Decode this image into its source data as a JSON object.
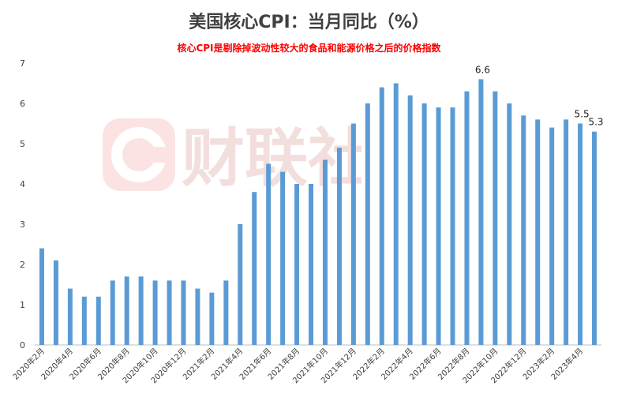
{
  "chart_data": {
    "type": "bar",
    "title": "美国核心CPI：当月同比（%）",
    "subtitle": "核心CPI是剔除掉波动性较大的食品和能源价格之后的价格指数",
    "watermark": "财联社",
    "categories": [
      "2020年2月",
      "2020年3月",
      "2020年4月",
      "2020年5月",
      "2020年6月",
      "2020年7月",
      "2020年8月",
      "2020年9月",
      "2020年10月",
      "2020年11月",
      "2020年12月",
      "2021年1月",
      "2021年2月",
      "2021年3月",
      "2021年4月",
      "2021年5月",
      "2021年6月",
      "2021年7月",
      "2021年8月",
      "2021年9月",
      "2021年10月",
      "2021年11月",
      "2021年12月",
      "2022年1月",
      "2022年2月",
      "2022年3月",
      "2022年4月",
      "2022年5月",
      "2022年6月",
      "2022年7月",
      "2022年8月",
      "2022年9月",
      "2022年10月",
      "2022年11月",
      "2022年12月",
      "2023年1月",
      "2023年2月",
      "2023年3月",
      "2023年4月",
      "2023年5月"
    ],
    "x_tick_labels": [
      "2020年2月",
      "2020年4月",
      "2020年6月",
      "2020年8月",
      "2020年10月",
      "2020年12月",
      "2021年2月",
      "2021年4月",
      "2021年6月",
      "2021年8月",
      "2021年10月",
      "2021年12月",
      "2022年2月",
      "2022年4月",
      "2022年6月",
      "2022年8月",
      "2022年10月",
      "2022年12月",
      "2023年2月",
      "2023年4月"
    ],
    "values": [
      2.4,
      2.1,
      1.4,
      1.2,
      1.2,
      1.6,
      1.7,
      1.7,
      1.6,
      1.6,
      1.6,
      1.4,
      1.3,
      1.6,
      3.0,
      3.8,
      4.5,
      4.3,
      4.0,
      4.0,
      4.6,
      4.9,
      5.5,
      6.0,
      6.4,
      6.5,
      6.2,
      6.0,
      5.9,
      5.9,
      6.3,
      6.6,
      6.3,
      6.0,
      5.7,
      5.6,
      5.4,
      5.6,
      5.5,
      5.3
    ],
    "data_labels": [
      {
        "category": "2022年9月",
        "text": "6.6"
      },
      {
        "category": "2023年4月",
        "text": "5.5"
      },
      {
        "category": "2023年5月",
        "text": "5.3"
      }
    ],
    "ylim": [
      0,
      7
    ],
    "y_ticks": [
      "0",
      "1",
      "2",
      "3",
      "4",
      "5",
      "6",
      "7"
    ],
    "bar_color": "#5b9bd5",
    "grid": false,
    "legend": "none"
  }
}
